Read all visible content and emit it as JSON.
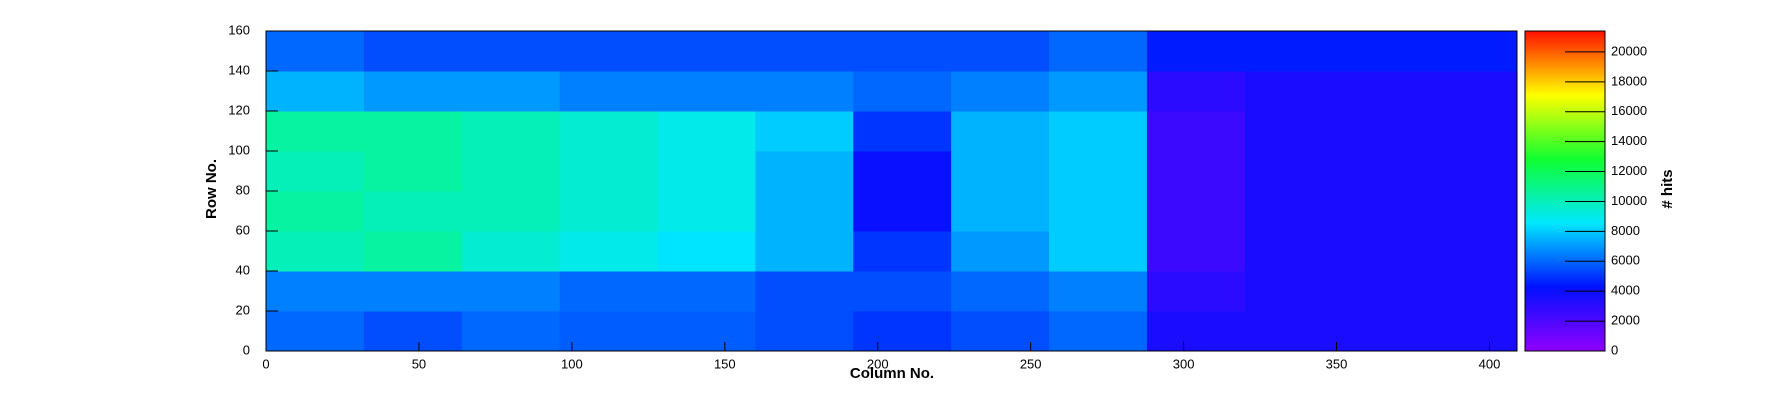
{
  "chart_data": {
    "type": "heatmap",
    "xlabel": "Column No.",
    "ylabel": "Row No.",
    "zlabel": "# hits",
    "xlim": [
      0,
      409
    ],
    "ylim": [
      0,
      160
    ],
    "zlim": [
      0,
      21400
    ],
    "xticks": [
      0,
      50,
      100,
      150,
      200,
      250,
      300,
      350,
      400
    ],
    "yticks": [
      0,
      20,
      40,
      60,
      80,
      100,
      120,
      140,
      160
    ],
    "zticks": [
      0,
      2000,
      4000,
      6000,
      8000,
      10000,
      12000,
      14000,
      16000,
      18000,
      20000
    ],
    "colormap": [
      "#9000ff",
      "#0010ff",
      "#00e8ff",
      "#10ff30",
      "#ffff00",
      "#ff1000"
    ],
    "xbins": [
      0,
      32,
      64,
      96,
      128,
      160,
      192,
      224,
      256,
      288,
      320,
      352,
      384,
      409
    ],
    "ybins": [
      0,
      20,
      40,
      60,
      80,
      100,
      120,
      140,
      160
    ],
    "z": [
      [
        6000,
        5500,
        6000,
        5800,
        5800,
        5500,
        5000,
        5500,
        6000,
        3500,
        3500,
        3500,
        3500
      ],
      [
        6500,
        6500,
        6500,
        6000,
        6000,
        5500,
        5500,
        6000,
        6500,
        3000,
        3500,
        3500,
        3500
      ],
      [
        10000,
        10500,
        9500,
        9000,
        8500,
        7500,
        5000,
        7000,
        8000,
        2500,
        3500,
        3500,
        3500
      ],
      [
        10500,
        10000,
        10000,
        9500,
        9000,
        7500,
        4000,
        7500,
        8000,
        2500,
        3500,
        3500,
        3500
      ],
      [
        10000,
        10500,
        10000,
        9500,
        9000,
        7500,
        4000,
        7500,
        8000,
        2500,
        3500,
        3500,
        3500
      ],
      [
        10500,
        10500,
        10000,
        9500,
        9000,
        8000,
        5000,
        7500,
        8000,
        2500,
        3500,
        3500,
        3500
      ],
      [
        7500,
        7000,
        7000,
        6500,
        6500,
        6500,
        6000,
        6500,
        7000,
        3000,
        3500,
        3500,
        3500
      ],
      [
        6000,
        5500,
        5500,
        5500,
        5500,
        5500,
        5500,
        5500,
        6000,
        4500,
        4500,
        4500,
        4500
      ]
    ]
  }
}
